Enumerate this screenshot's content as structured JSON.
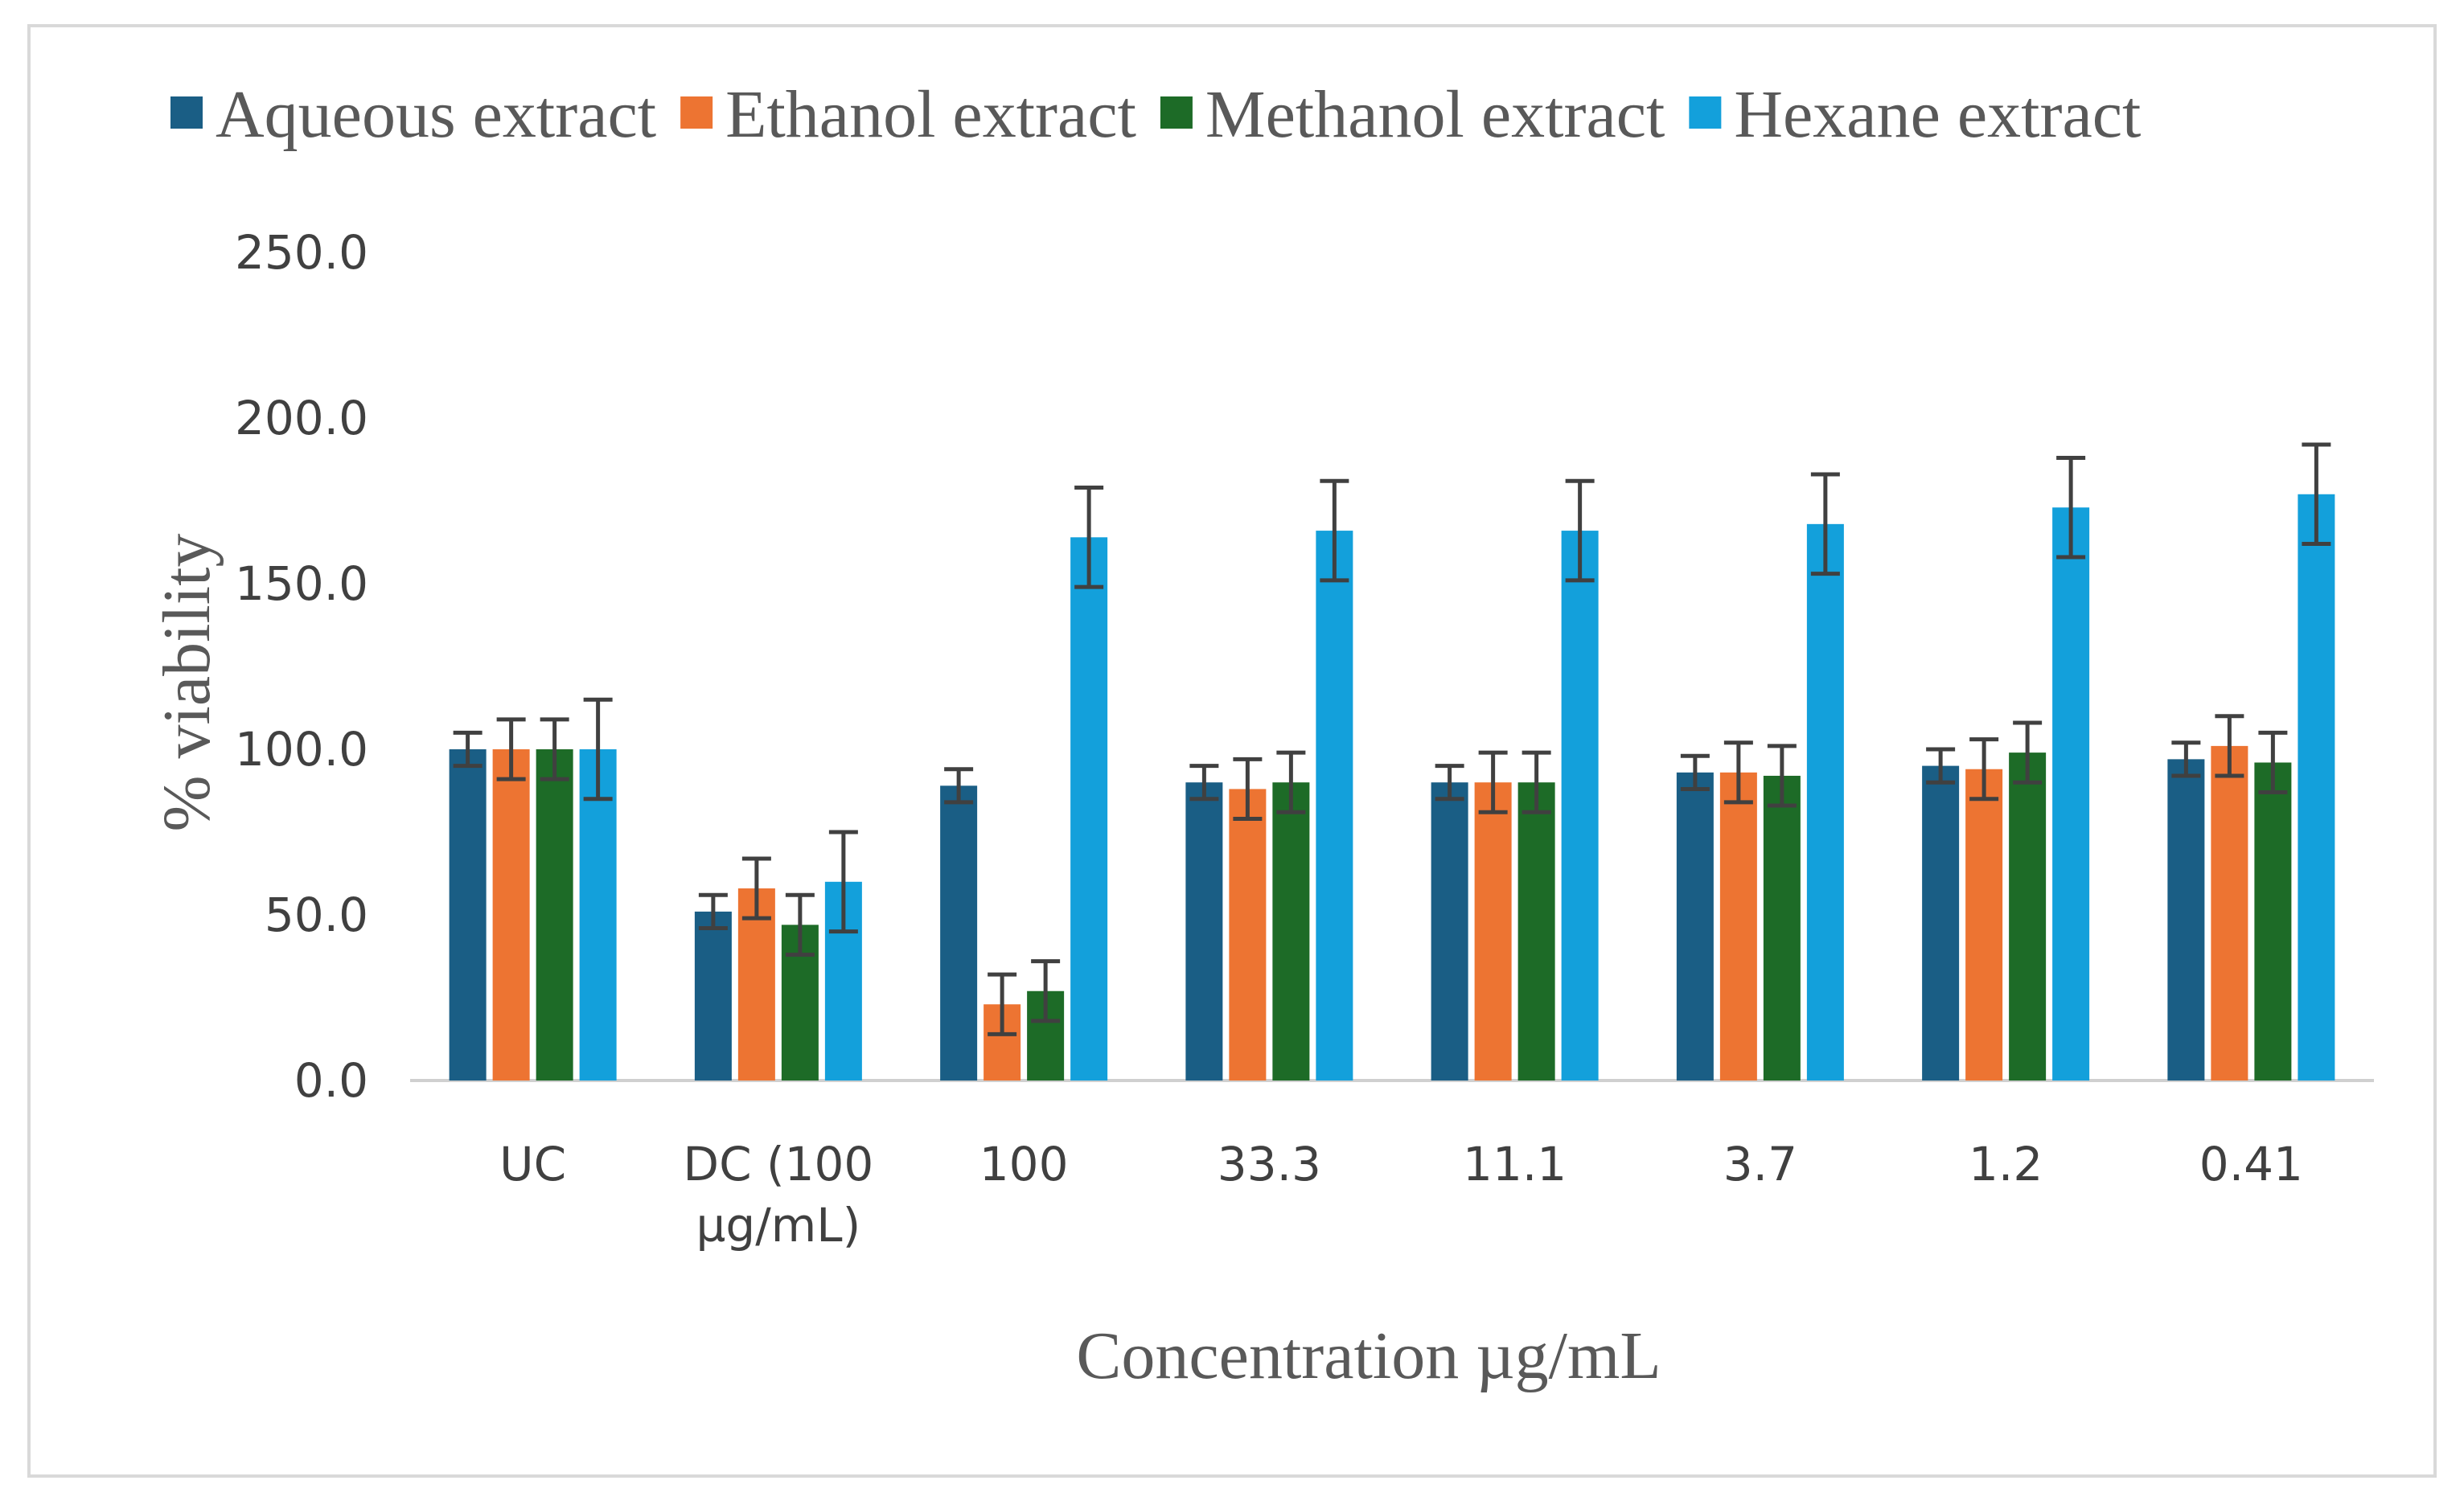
{
  "chart_data": {
    "type": "bar",
    "title": "",
    "xlabel": "Concentration µg/mL",
    "ylabel": "% viability",
    "ylim": [
      0,
      250
    ],
    "yticks": [
      "0.0",
      "50.0",
      "100.0",
      "150.0",
      "200.0",
      "250.0"
    ],
    "ytick_values": [
      0,
      50,
      100,
      150,
      200,
      250
    ],
    "grid": false,
    "legend_position": "top",
    "categories": [
      [
        "UC"
      ],
      [
        "DC (100",
        "µg/mL)"
      ],
      [
        "100"
      ],
      [
        "33.3"
      ],
      [
        "11.1"
      ],
      [
        "3.7"
      ],
      [
        "1.2"
      ],
      [
        "0.41"
      ]
    ],
    "series": [
      {
        "name": "Aqueous extract",
        "color": "#1a5e85",
        "values": [
          100,
          51,
          89,
          90,
          90,
          93,
          95,
          97
        ],
        "errors": [
          5,
          5,
          5,
          5,
          5,
          5,
          5,
          5
        ]
      },
      {
        "name": "Ethanol extract",
        "color": "#ed7432",
        "values": [
          100,
          58,
          23,
          88,
          90,
          93,
          94,
          101
        ],
        "errors": [
          9,
          9,
          9,
          9,
          9,
          9,
          9,
          9
        ]
      },
      {
        "name": "Methanol extract",
        "color": "#1d6b27",
        "values": [
          100,
          47,
          27,
          90,
          90,
          92,
          99,
          96
        ],
        "errors": [
          9,
          9,
          9,
          9,
          9,
          9,
          9,
          9
        ]
      },
      {
        "name": "Hexane extract",
        "color": "#13a0db",
        "values": [
          100,
          60,
          164,
          166,
          166,
          168,
          173,
          177
        ],
        "errors": [
          15,
          15,
          15,
          15,
          15,
          15,
          15,
          15
        ]
      }
    ],
    "colors": {
      "axis": "#d0d0d0",
      "tick_text": "#404040",
      "title_text": "#595959",
      "error_bar": "#404040"
    }
  }
}
